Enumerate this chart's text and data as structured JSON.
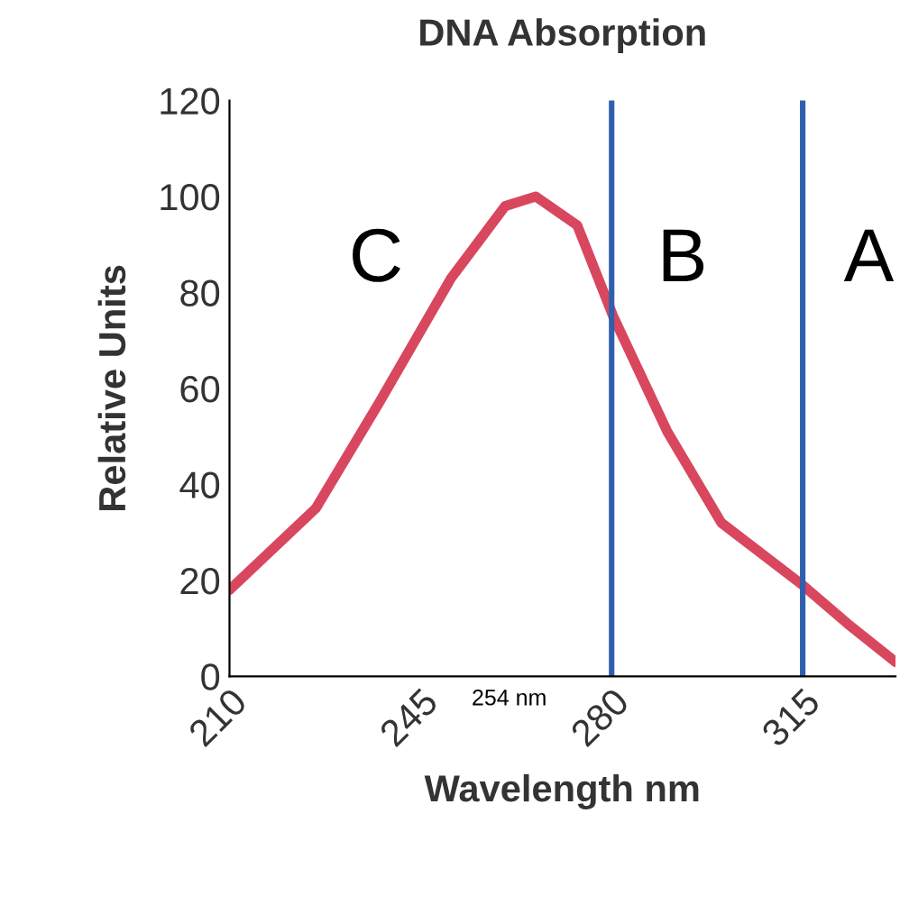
{
  "chart_data": {
    "type": "line",
    "title": "DNA Absorption",
    "xlabel": "Wavelength nm",
    "ylabel": "Relative Units",
    "x": [
      210,
      225.8,
      237.4,
      250.6,
      260.5,
      266.1,
      273.7,
      280.3,
      290.2,
      300.1,
      315,
      323.2,
      332
    ],
    "series": [
      {
        "color": "#d9475f",
        "values": [
          18,
          35,
          57,
          83,
          98,
          100,
          94,
          75,
          51,
          32,
          19,
          11,
          3
        ]
      }
    ],
    "xlim": [
      210,
      332
    ],
    "xticks": [
      210,
      245,
      280,
      315
    ],
    "ylim": [
      0,
      120
    ],
    "yticks": [
      0,
      20,
      40,
      60,
      80,
      100,
      120
    ],
    "ref_lines": [
      {
        "axis": "x",
        "value": 280,
        "color": "#2f5fae"
      },
      {
        "axis": "x",
        "value": 315,
        "color": "#2f5fae"
      }
    ],
    "annotations": [
      "C",
      "B",
      "A",
      "254 nm"
    ],
    "grid": false,
    "legend": false
  }
}
